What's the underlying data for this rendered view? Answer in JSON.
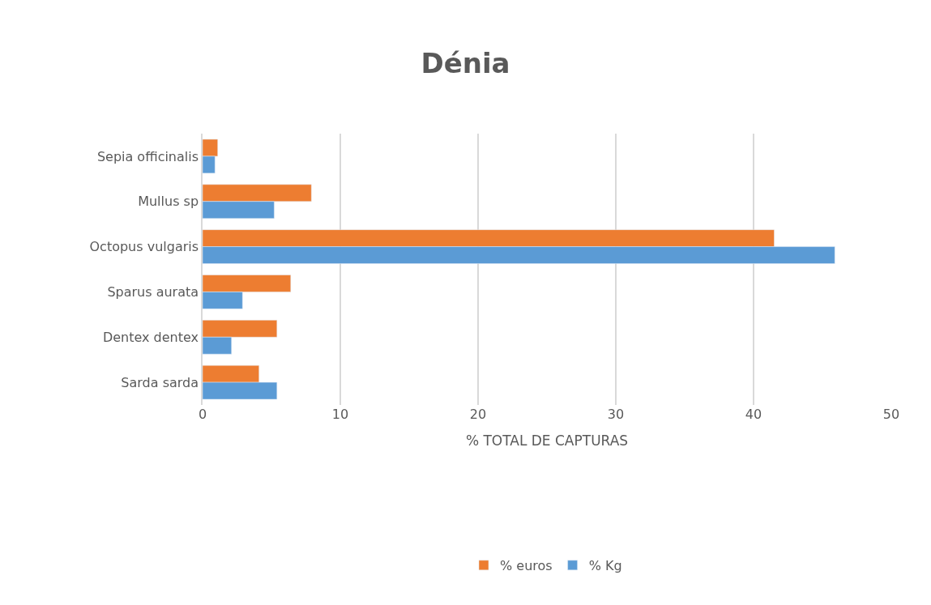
{
  "chart_data": {
    "type": "bar",
    "orientation": "horizontal",
    "title": "Dénia",
    "xlabel": "% TOTAL DE CAPTURAS",
    "categories": [
      "Sepia officinalis",
      "Mullus sp",
      "Octopus vulgaris",
      "Sparus aurata",
      "Dentex dentex",
      "Sarda sarda"
    ],
    "series": [
      {
        "name": "% euros",
        "color": "#ed7d31",
        "values": [
          1.1,
          7.9,
          41.5,
          6.4,
          5.4,
          4.1
        ]
      },
      {
        "name": "% Kg",
        "color": "#5b9bd5",
        "values": [
          0.9,
          5.2,
          45.9,
          2.9,
          2.1,
          5.4
        ]
      }
    ],
    "xlim": [
      0,
      50
    ],
    "xticks": [
      0,
      10,
      20,
      30,
      40,
      50
    ],
    "grid": "x",
    "legend": "bottom"
  }
}
